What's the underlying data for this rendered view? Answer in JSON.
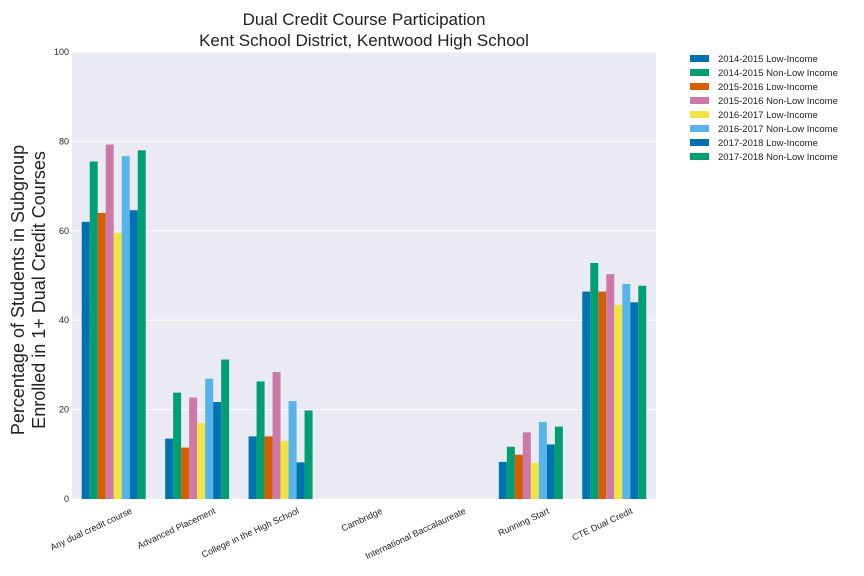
{
  "chart_data": {
    "type": "bar",
    "title": [
      "Dual Credit Course Participation",
      "Kent School District, Kentwood High School"
    ],
    "ylabel": [
      "Percentage of Students in Subgroup",
      "Enrolled in 1+ Dual Credit Courses"
    ],
    "xlabel": "",
    "ylim": [
      0,
      100
    ],
    "yticks": [
      "0",
      "20",
      "40",
      "60",
      "80",
      "100"
    ],
    "grid": true,
    "legend_position": "outside-top-right",
    "categories": [
      "Any dual credit course",
      "Advanced Placement",
      "College in the High School",
      "Cambridge",
      "International Baccalaureate",
      "Running Start",
      "CTE Dual Credit"
    ],
    "series": [
      {
        "name": "2014-2015 Low-Income",
        "color": "#0072b2",
        "values": [
          62.0,
          13.5,
          14.0,
          null,
          null,
          8.3,
          46.4
        ]
      },
      {
        "name": "2014-2015 Non-Low Income",
        "color": "#009e73",
        "values": [
          75.5,
          23.8,
          26.3,
          null,
          null,
          11.7,
          52.8
        ]
      },
      {
        "name": "2015-2016 Low-Income",
        "color": "#d55e00",
        "values": [
          64.0,
          11.5,
          14.0,
          null,
          null,
          9.9,
          46.4
        ]
      },
      {
        "name": "2015-2016 Non-Low Income",
        "color": "#cc79a7",
        "values": [
          79.3,
          22.7,
          28.4,
          null,
          null,
          14.9,
          50.3
        ]
      },
      {
        "name": "2016-2017 Low-Income",
        "color": "#f0e442",
        "values": [
          59.5,
          17.0,
          13.0,
          null,
          null,
          8.1,
          43.4
        ]
      },
      {
        "name": "2016-2017 Non-Low Income",
        "color": "#56b4e9",
        "values": [
          76.7,
          26.9,
          21.9,
          null,
          null,
          17.2,
          48.1
        ]
      },
      {
        "name": "2017-2018 Low-Income",
        "color": "#0072b2",
        "values": [
          64.6,
          21.7,
          8.2,
          null,
          null,
          12.2,
          44.0
        ]
      },
      {
        "name": "2017-2018 Non-Low Income",
        "color": "#009e73",
        "values": [
          78.0,
          31.2,
          19.8,
          null,
          null,
          16.2,
          47.7
        ]
      }
    ]
  }
}
